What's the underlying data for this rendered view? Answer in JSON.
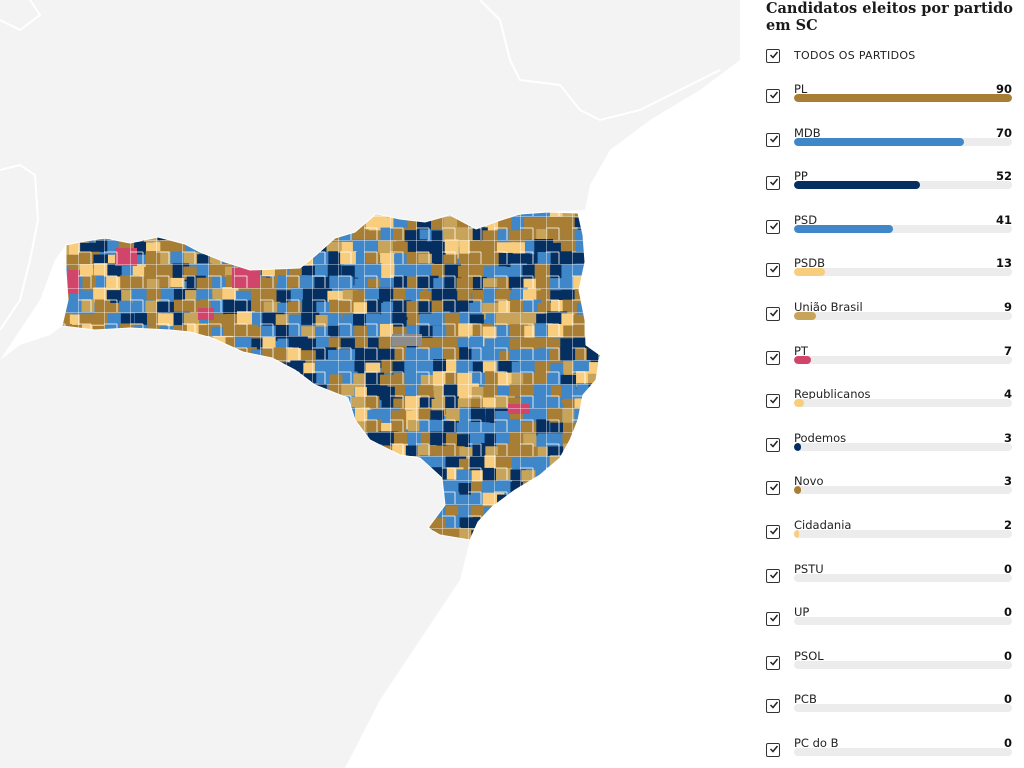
{
  "sidebar": {
    "title": "Candidatos eleitos por partido em SC",
    "all_label": "TODOS OS PARTIDOS",
    "max_value": 90,
    "parties": [
      {
        "name": "PL",
        "count": 90,
        "color": "#a87e34",
        "checked": true
      },
      {
        "name": "MDB",
        "count": 70,
        "color": "#3f87c9",
        "checked": true
      },
      {
        "name": "PP",
        "count": 52,
        "color": "#052f61",
        "checked": true
      },
      {
        "name": "PSD",
        "count": 41,
        "color": "#3f87c9",
        "checked": true
      },
      {
        "name": "PSDB",
        "count": 13,
        "color": "#f9cd7e",
        "checked": true
      },
      {
        "name": "União Brasil",
        "count": 9,
        "color": "#c8a35a",
        "checked": true
      },
      {
        "name": "PT",
        "count": 7,
        "color": "#d2456a",
        "checked": true
      },
      {
        "name": "Republicanos",
        "count": 4,
        "color": "#f9cd7e",
        "checked": true
      },
      {
        "name": "Podemos",
        "count": 3,
        "color": "#052f61",
        "checked": true
      },
      {
        "name": "Novo",
        "count": 3,
        "color": "#a87e34",
        "checked": true
      },
      {
        "name": "Cidadania",
        "count": 2,
        "color": "#f9cd7e",
        "checked": true
      },
      {
        "name": "PSTU",
        "count": 0,
        "color": "#a87e34",
        "checked": true
      },
      {
        "name": "UP",
        "count": 0,
        "color": "#3f87c9",
        "checked": true
      },
      {
        "name": "PSOL",
        "count": 0,
        "color": "#d2456a",
        "checked": true
      },
      {
        "name": "PCB",
        "count": 0,
        "color": "#052f61",
        "checked": true
      },
      {
        "name": "PC do B",
        "count": 0,
        "color": "#d2456a",
        "checked": true
      }
    ]
  },
  "map": {
    "colors": {
      "background_land": "#f3f3f3",
      "sea": "#ffffff",
      "border": "#ffffff",
      "pl": "#a87e34",
      "mdb_psd": "#3f87c9",
      "pp": "#052f61",
      "psdb": "#f9cd7e",
      "uniao": "#c8a35a",
      "pt": "#d2456a",
      "none": "#8c8c8c"
    }
  }
}
